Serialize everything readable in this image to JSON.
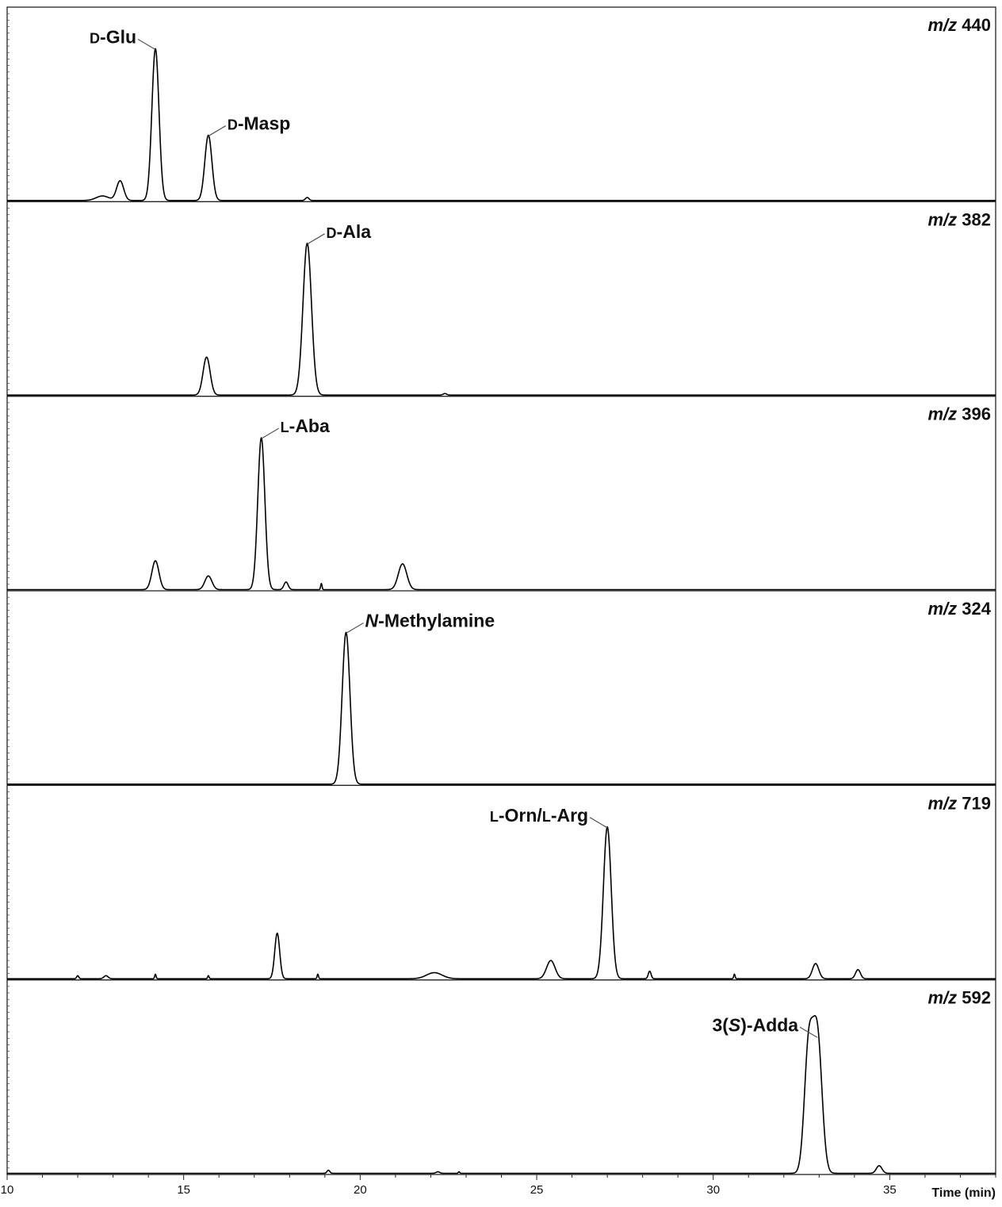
{
  "chart_data": {
    "type": "line",
    "layout": "stacked extracted ion chromatograms sharing one time axis",
    "xlabel": "Time (min)",
    "xlim": [
      10,
      38
    ],
    "x_ticks": [
      10,
      15,
      20,
      25,
      30,
      35
    ],
    "ylim": [
      0,
      1
    ],
    "grid": false,
    "line_color": "#000000",
    "panels": [
      {
        "mz_prefix": "m/z",
        "mz_value": "440",
        "peaks": [
          {
            "rt": 12.7,
            "height": 0.03,
            "width": 0.18
          },
          {
            "rt": 13.2,
            "height": 0.13,
            "width": 0.1
          },
          {
            "rt": 14.2,
            "height": 1.0,
            "width": 0.1
          },
          {
            "rt": 15.7,
            "height": 0.43,
            "width": 0.1
          },
          {
            "rt": 18.5,
            "height": 0.02,
            "width": 0.05
          }
        ],
        "labels": [
          {
            "prefix": "D",
            "text": "-Glu",
            "rt": 14.2,
            "anchor": "left"
          },
          {
            "prefix": "D",
            "text": "-Masp",
            "rt": 15.7,
            "anchor": "right"
          }
        ]
      },
      {
        "mz_prefix": "m/z",
        "mz_value": "382",
        "peaks": [
          {
            "rt": 15.65,
            "height": 0.25,
            "width": 0.1
          },
          {
            "rt": 18.5,
            "height": 1.0,
            "width": 0.12
          },
          {
            "rt": 22.4,
            "height": 0.01,
            "width": 0.05
          }
        ],
        "labels": [
          {
            "prefix": "D",
            "text": "-Ala",
            "rt": 18.5,
            "anchor": "right"
          }
        ]
      },
      {
        "mz_prefix": "m/z",
        "mz_value": "396",
        "peaks": [
          {
            "rt": 14.2,
            "height": 0.19,
            "width": 0.1
          },
          {
            "rt": 15.7,
            "height": 0.09,
            "width": 0.1
          },
          {
            "rt": 17.2,
            "height": 1.0,
            "width": 0.1
          },
          {
            "rt": 17.9,
            "height": 0.05,
            "width": 0.06
          },
          {
            "rt": 18.9,
            "height": 0.04,
            "width": 0.02
          },
          {
            "rt": 21.2,
            "height": 0.17,
            "width": 0.12
          }
        ],
        "labels": [
          {
            "prefix": "L",
            "text": "-Aba",
            "rt": 17.2,
            "anchor": "right"
          }
        ]
      },
      {
        "mz_prefix": "m/z",
        "mz_value": "324",
        "peaks": [
          {
            "rt": 19.6,
            "height": 1.0,
            "width": 0.11
          }
        ],
        "labels": [
          {
            "prefix": "N",
            "text": "-Methylamine",
            "rt": 19.6,
            "anchor": "right",
            "prefix_style": "italic"
          }
        ]
      },
      {
        "mz_prefix": "m/z",
        "mz_value": "719",
        "peaks": [
          {
            "rt": 12.0,
            "height": 0.02,
            "width": 0.03
          },
          {
            "rt": 12.8,
            "height": 0.02,
            "width": 0.06
          },
          {
            "rt": 14.2,
            "height": 0.03,
            "width": 0.02
          },
          {
            "rt": 15.7,
            "height": 0.02,
            "width": 0.02
          },
          {
            "rt": 17.65,
            "height": 0.3,
            "width": 0.07
          },
          {
            "rt": 18.8,
            "height": 0.03,
            "width": 0.02
          },
          {
            "rt": 22.1,
            "height": 0.04,
            "width": 0.22
          },
          {
            "rt": 25.4,
            "height": 0.12,
            "width": 0.12
          },
          {
            "rt": 27.0,
            "height": 1.0,
            "width": 0.11
          },
          {
            "rt": 28.2,
            "height": 0.05,
            "width": 0.04
          },
          {
            "rt": 30.6,
            "height": 0.03,
            "width": 0.02
          },
          {
            "rt": 32.9,
            "height": 0.1,
            "width": 0.09
          },
          {
            "rt": 34.1,
            "height": 0.06,
            "width": 0.07
          }
        ],
        "labels": [
          {
            "prefix": "L",
            "text": "-Orn/",
            "prefix2": "L",
            "text2": "-Arg",
            "rt": 27.0,
            "anchor": "left"
          }
        ]
      },
      {
        "mz_prefix": "m/z",
        "mz_value": "592",
        "peaks": [
          {
            "rt": 19.1,
            "height": 0.02,
            "width": 0.04
          },
          {
            "rt": 22.2,
            "height": 0.01,
            "width": 0.05
          },
          {
            "rt": 22.8,
            "height": 0.01,
            "width": 0.02
          },
          {
            "rt": 32.7,
            "height": 0.8,
            "width": 0.12
          },
          {
            "rt": 32.95,
            "height": 0.9,
            "width": 0.13
          },
          {
            "rt": 34.7,
            "height": 0.05,
            "width": 0.08
          }
        ],
        "labels": [
          {
            "prefix": "",
            "text": "3(",
            "italic_mid": "S",
            "text2": ")-Adda",
            "rt": 32.9,
            "anchor": "left"
          }
        ]
      }
    ]
  }
}
